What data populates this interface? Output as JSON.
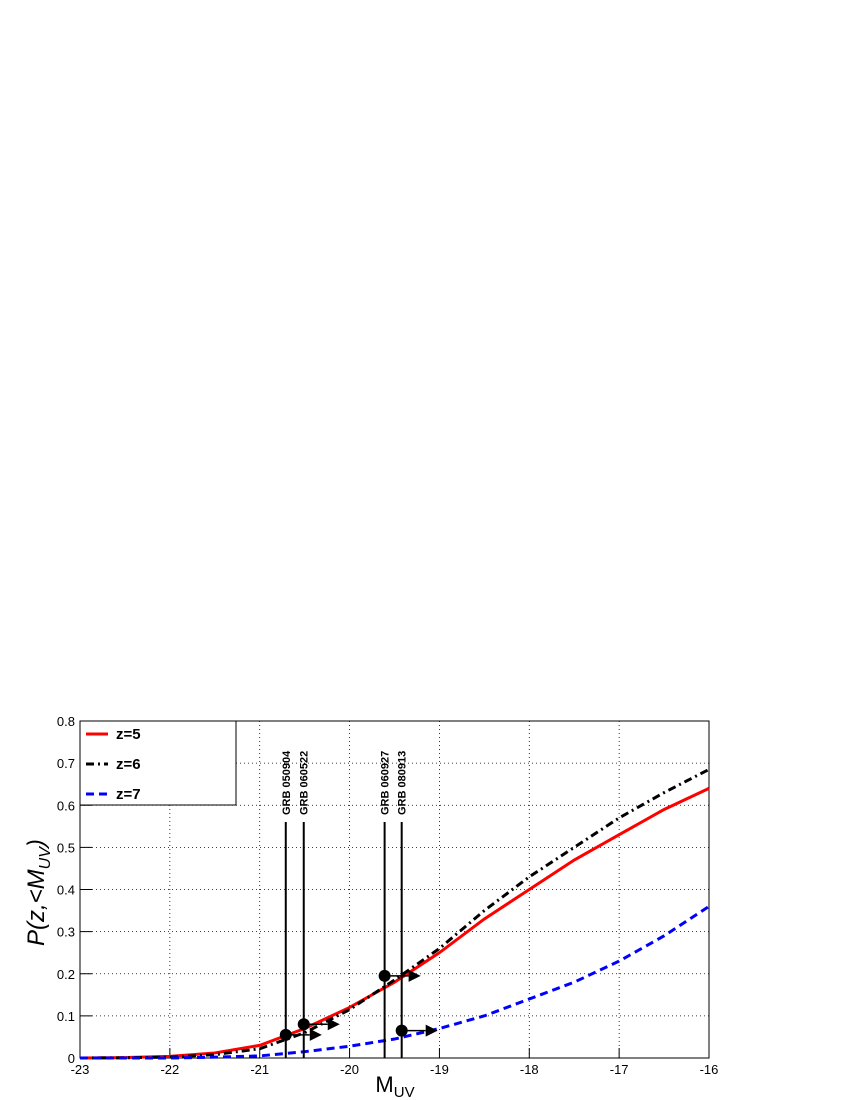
{
  "chart_data": {
    "type": "line",
    "x_label": "M",
    "x_label_sub": "UV",
    "y_label": "P(z,<M",
    "y_label_sub": "UV",
    "y_label_end": ")",
    "x": [
      -23,
      -22.5,
      -22,
      -21.5,
      -21,
      -20.5,
      -20,
      -19.5,
      -19,
      -18.5,
      -18,
      -17.5,
      -17,
      -16.5,
      -16
    ],
    "series": [
      {
        "name": "z=5",
        "color": "#ff0000",
        "dash": "solid",
        "values": [
          0,
          0.001,
          0.004,
          0.012,
          0.03,
          0.07,
          0.12,
          0.18,
          0.25,
          0.33,
          0.4,
          0.47,
          0.53,
          0.59,
          0.64
        ]
      },
      {
        "name": "z=6",
        "color": "#000000",
        "dash": "dashdot",
        "values": [
          0,
          0.0005,
          0.002,
          0.008,
          0.022,
          0.06,
          0.115,
          0.185,
          0.26,
          0.35,
          0.43,
          0.5,
          0.57,
          0.63,
          0.685
        ]
      },
      {
        "name": "z=7",
        "color": "#0000ff",
        "dash": "dashed",
        "values": [
          0,
          0,
          0,
          0.002,
          0.005,
          0.015,
          0.028,
          0.045,
          0.07,
          0.1,
          0.14,
          0.18,
          0.23,
          0.29,
          0.36
        ]
      }
    ],
    "points": [
      {
        "name": "GRB 050904",
        "x": -20.71,
        "y": 0.055
      },
      {
        "name": "GRB 060522",
        "x": -20.51,
        "y": 0.08
      },
      {
        "name": "GRB 060927",
        "x": -19.61,
        "y": 0.195
      },
      {
        "name": "GRB 080913",
        "x": -19.42,
        "y": 0.065
      }
    ],
    "xlim": [
      -23,
      -16
    ],
    "ylim": [
      0,
      0.8
    ],
    "xticks": [
      -23,
      -22,
      -21,
      -20,
      -19,
      -18,
      -17,
      -16
    ],
    "yticks": [
      0,
      0.1,
      0.2,
      0.3,
      0.4,
      0.5,
      0.6,
      0.7,
      0.8
    ],
    "grid": true,
    "legend": "top-left"
  }
}
